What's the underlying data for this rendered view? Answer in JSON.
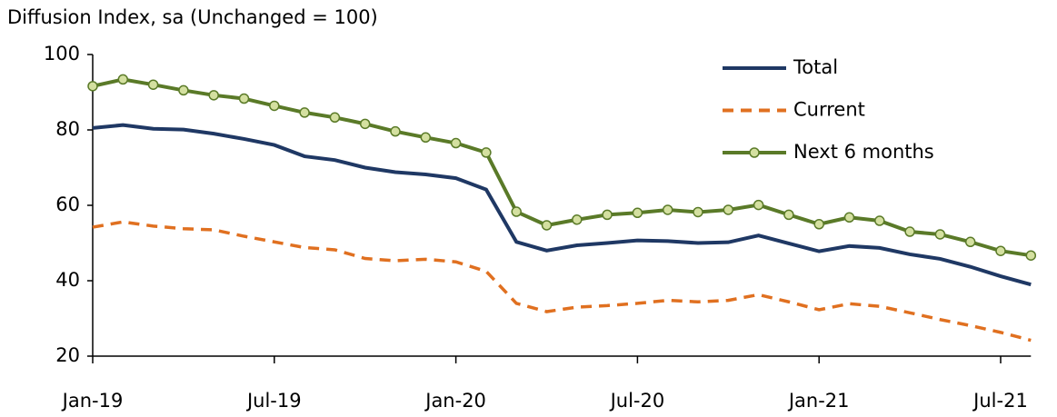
{
  "chart_data": {
    "type": "line",
    "y_label": "Diffusion Index, sa (Unchanged = 100)",
    "categories": [
      "Jan-19",
      null,
      null,
      null,
      null,
      null,
      "Jul-19",
      null,
      null,
      null,
      null,
      null,
      "Jan-20",
      null,
      null,
      null,
      null,
      null,
      "Jul-20",
      null,
      null,
      null,
      null,
      null,
      "Jan-21",
      null,
      null,
      null,
      null,
      null,
      "Jul-21",
      null
    ],
    "ylim": [
      20,
      100
    ],
    "yticks": [
      20,
      40,
      60,
      80,
      100
    ],
    "grid": false,
    "legend": "top-right",
    "series": [
      {
        "name": "Total",
        "color": "#1f3864",
        "dash": false,
        "marker": false,
        "values": [
          80.5,
          81.3,
          80.3,
          80.1,
          79.0,
          77.6,
          76.0,
          73.0,
          72.0,
          70.0,
          68.8,
          68.2,
          67.2,
          64.2,
          50.3,
          48.0,
          49.4,
          50.0,
          50.7,
          50.5,
          50.0,
          50.2,
          52.0,
          49.9,
          47.8,
          49.2,
          48.7,
          47.0,
          45.8,
          43.7,
          41.2,
          39.0
        ]
      },
      {
        "name": "Current",
        "color": "#e07020",
        "dash": true,
        "marker": false,
        "values": [
          54.2,
          55.6,
          54.5,
          53.8,
          53.5,
          51.8,
          50.3,
          48.8,
          48.2,
          45.9,
          45.3,
          45.7,
          45.0,
          42.5,
          34.0,
          31.8,
          33.0,
          33.4,
          34.0,
          34.8,
          34.4,
          34.8,
          36.3,
          34.4,
          32.3,
          33.9,
          33.2,
          31.5,
          29.7,
          28.1,
          26.3,
          24.2
        ]
      },
      {
        "name": "Next 6 months",
        "color": "#5a7a28",
        "dash": false,
        "marker": true,
        "values": [
          91.6,
          93.4,
          92.0,
          90.5,
          89.2,
          88.3,
          86.4,
          84.6,
          83.3,
          81.6,
          79.6,
          78.0,
          76.5,
          74.0,
          58.3,
          54.7,
          56.2,
          57.5,
          58.0,
          58.8,
          58.2,
          58.8,
          60.1,
          57.5,
          55.0,
          56.8,
          55.9,
          53.0,
          52.3,
          50.3,
          47.9,
          46.7
        ]
      }
    ]
  }
}
